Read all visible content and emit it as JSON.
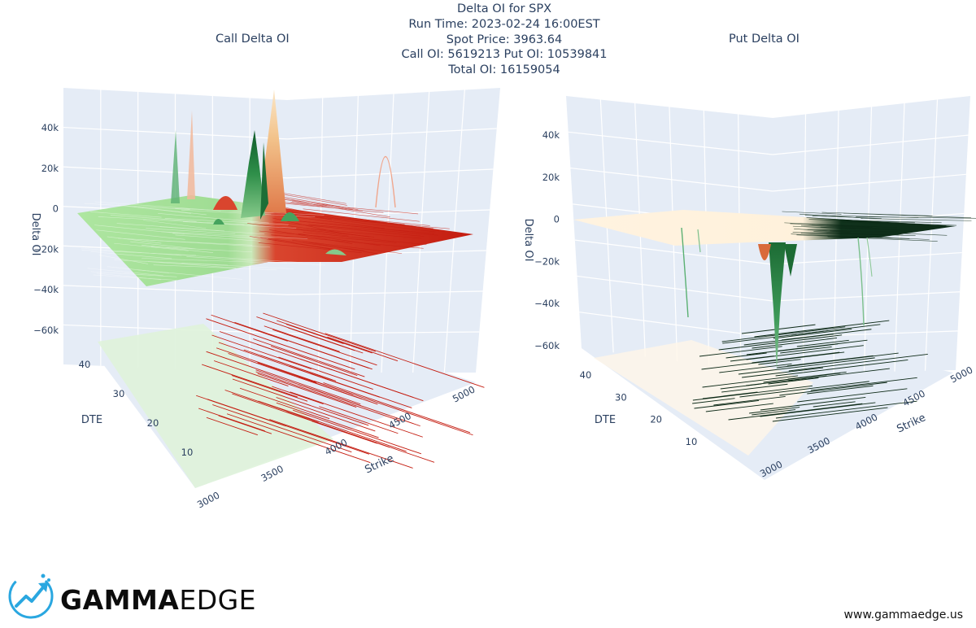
{
  "header": {
    "title": "Delta OI for SPX",
    "run_time": "Run Time: 2023-02-24 16:00EST",
    "spot_price": "Spot Price: 3963.64",
    "oi_line": "Call OI: 5619213 Put OI: 10539841",
    "total_oi": "Total OI: 16159054"
  },
  "brand": {
    "logo_word_bold": "GAMMA",
    "logo_word_light": "EDGE",
    "website": "www.gammaedge.us",
    "accent_color": "#2aa7e0",
    "icon": "trend-arrow-logo-icon"
  },
  "chart_data": [
    {
      "type": "surface",
      "title": "Call Delta OI",
      "x_label": "Strike",
      "y_label": "DTE",
      "z_label": "Delta OI",
      "x_ticks": [
        "3000",
        "3500",
        "4000",
        "4500",
        "5000"
      ],
      "y_ticks": [
        "10",
        "20",
        "30",
        "40"
      ],
      "z_ticks": [
        "40k",
        "20k",
        "0",
        "−20k",
        "−40k",
        "−60k"
      ],
      "z_range": [
        -70000,
        55000
      ],
      "colorscale": [
        "#a8e39b",
        "#1f7a3a",
        "#f4d8b0",
        "#c81e10"
      ],
      "peaks": [
        {
          "strike": 3975,
          "dte": 5,
          "delta_oi": 53000
        },
        {
          "strike": 3900,
          "dte": 8,
          "delta_oi": 37000
        },
        {
          "strike": 3950,
          "dte": 12,
          "delta_oi": 18000
        },
        {
          "strike": 4400,
          "dte": 40,
          "delta_oi": 42000
        },
        {
          "strike": 3600,
          "dte": 35,
          "delta_oi": 28000
        }
      ]
    },
    {
      "type": "surface",
      "title": "Put Delta OI",
      "x_label": "Strike",
      "y_label": "DTE",
      "z_label": "Delta OI",
      "x_ticks": [
        "3000",
        "3500",
        "4000",
        "4500",
        "5000"
      ],
      "y_ticks": [
        "10",
        "20",
        "30",
        "40"
      ],
      "z_ticks": [
        "40k",
        "20k",
        "0",
        "−20k",
        "−40k",
        "−60k"
      ],
      "z_range": [
        -70000,
        55000
      ],
      "colorscale": [
        "#fff6e5",
        "#d96a3a",
        "#2d8a4e",
        "#0c2a16"
      ],
      "troughs": [
        {
          "strike": 3900,
          "dte": 5,
          "delta_oi": -68000
        },
        {
          "strike": 3850,
          "dte": 10,
          "delta_oi": -30000
        },
        {
          "strike": 3400,
          "dte": 25,
          "delta_oi": -35000
        },
        {
          "strike": 4600,
          "dte": 30,
          "delta_oi": -38000
        }
      ]
    }
  ]
}
